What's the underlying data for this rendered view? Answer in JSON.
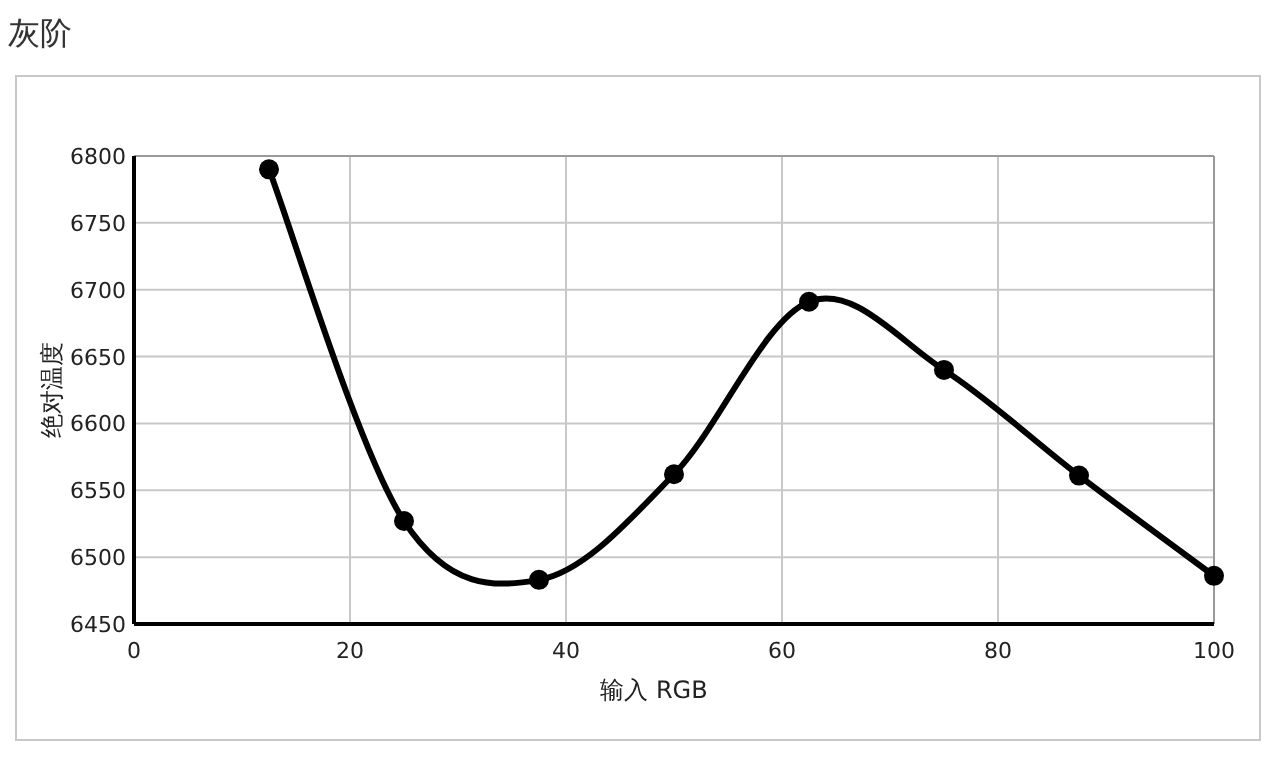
{
  "chart_data": {
    "type": "line",
    "title": "灰阶",
    "xlabel": "输入 RGB",
    "ylabel": "绝对温度",
    "x": [
      12.5,
      25,
      37.5,
      50,
      62.5,
      75,
      87.5,
      100
    ],
    "series": [
      {
        "color": "#000000",
        "values": [
          6790,
          6527,
          6483,
          6562,
          6691,
          6640,
          6561,
          6486
        ]
      }
    ],
    "xlim": [
      0,
      100
    ],
    "xticks": [
      0,
      20,
      40,
      60,
      80,
      100
    ],
    "ylim": [
      6450,
      6800
    ],
    "yticks": [
      6450,
      6500,
      6550,
      6600,
      6650,
      6700,
      6750,
      6800
    ],
    "grid": true,
    "marker": "circle",
    "line_style": "solid"
  }
}
